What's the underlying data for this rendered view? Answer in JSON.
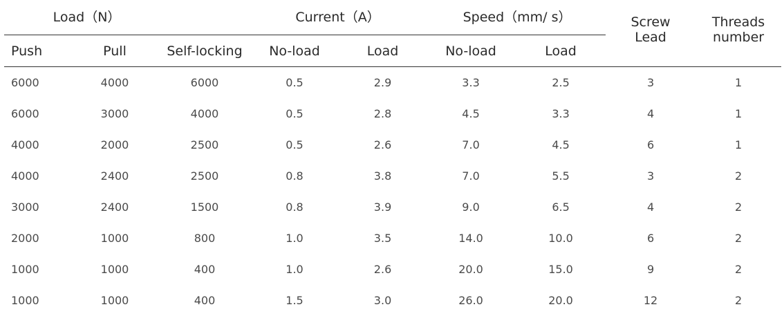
{
  "header": {
    "load_group": "Load（N）",
    "current_group": "Current（A）",
    "speed_group": "Speed（mm/ s）",
    "screw_lead_line1": "Screw",
    "screw_lead_line2": "Lead",
    "threads_line1": "Threads",
    "threads_line2": "number",
    "sub": {
      "push": "Push",
      "pull": "Pull",
      "self_locking": "Self-locking",
      "current_noload": "No-load",
      "current_load": "Load",
      "speed_noload": "No-load",
      "speed_load": "Load"
    }
  },
  "rows": [
    [
      "6000",
      "4000",
      "6000",
      "0.5",
      "2.9",
      "3.3",
      "2.5",
      "3",
      "1"
    ],
    [
      "6000",
      "3000",
      "4000",
      "0.5",
      "2.8",
      "4.5",
      "3.3",
      "4",
      "1"
    ],
    [
      "4000",
      "2000",
      "2500",
      "0.5",
      "2.6",
      "7.0",
      "4.5",
      "6",
      "1"
    ],
    [
      "4000",
      "2400",
      "2500",
      "0.8",
      "3.8",
      "7.0",
      "5.5",
      "3",
      "2"
    ],
    [
      "3000",
      "2400",
      "1500",
      "0.8",
      "3.9",
      "9.0",
      "6.5",
      "4",
      "2"
    ],
    [
      "2000",
      "1000",
      "800",
      "1.0",
      "3.5",
      "14.0",
      "10.0",
      "6",
      "2"
    ],
    [
      "1000",
      "1000",
      "400",
      "1.0",
      "2.6",
      "20.0",
      "15.0",
      "9",
      "2"
    ],
    [
      "1000",
      "1000",
      "400",
      "1.5",
      "3.0",
      "26.0",
      "20.0",
      "12",
      "2"
    ]
  ]
}
